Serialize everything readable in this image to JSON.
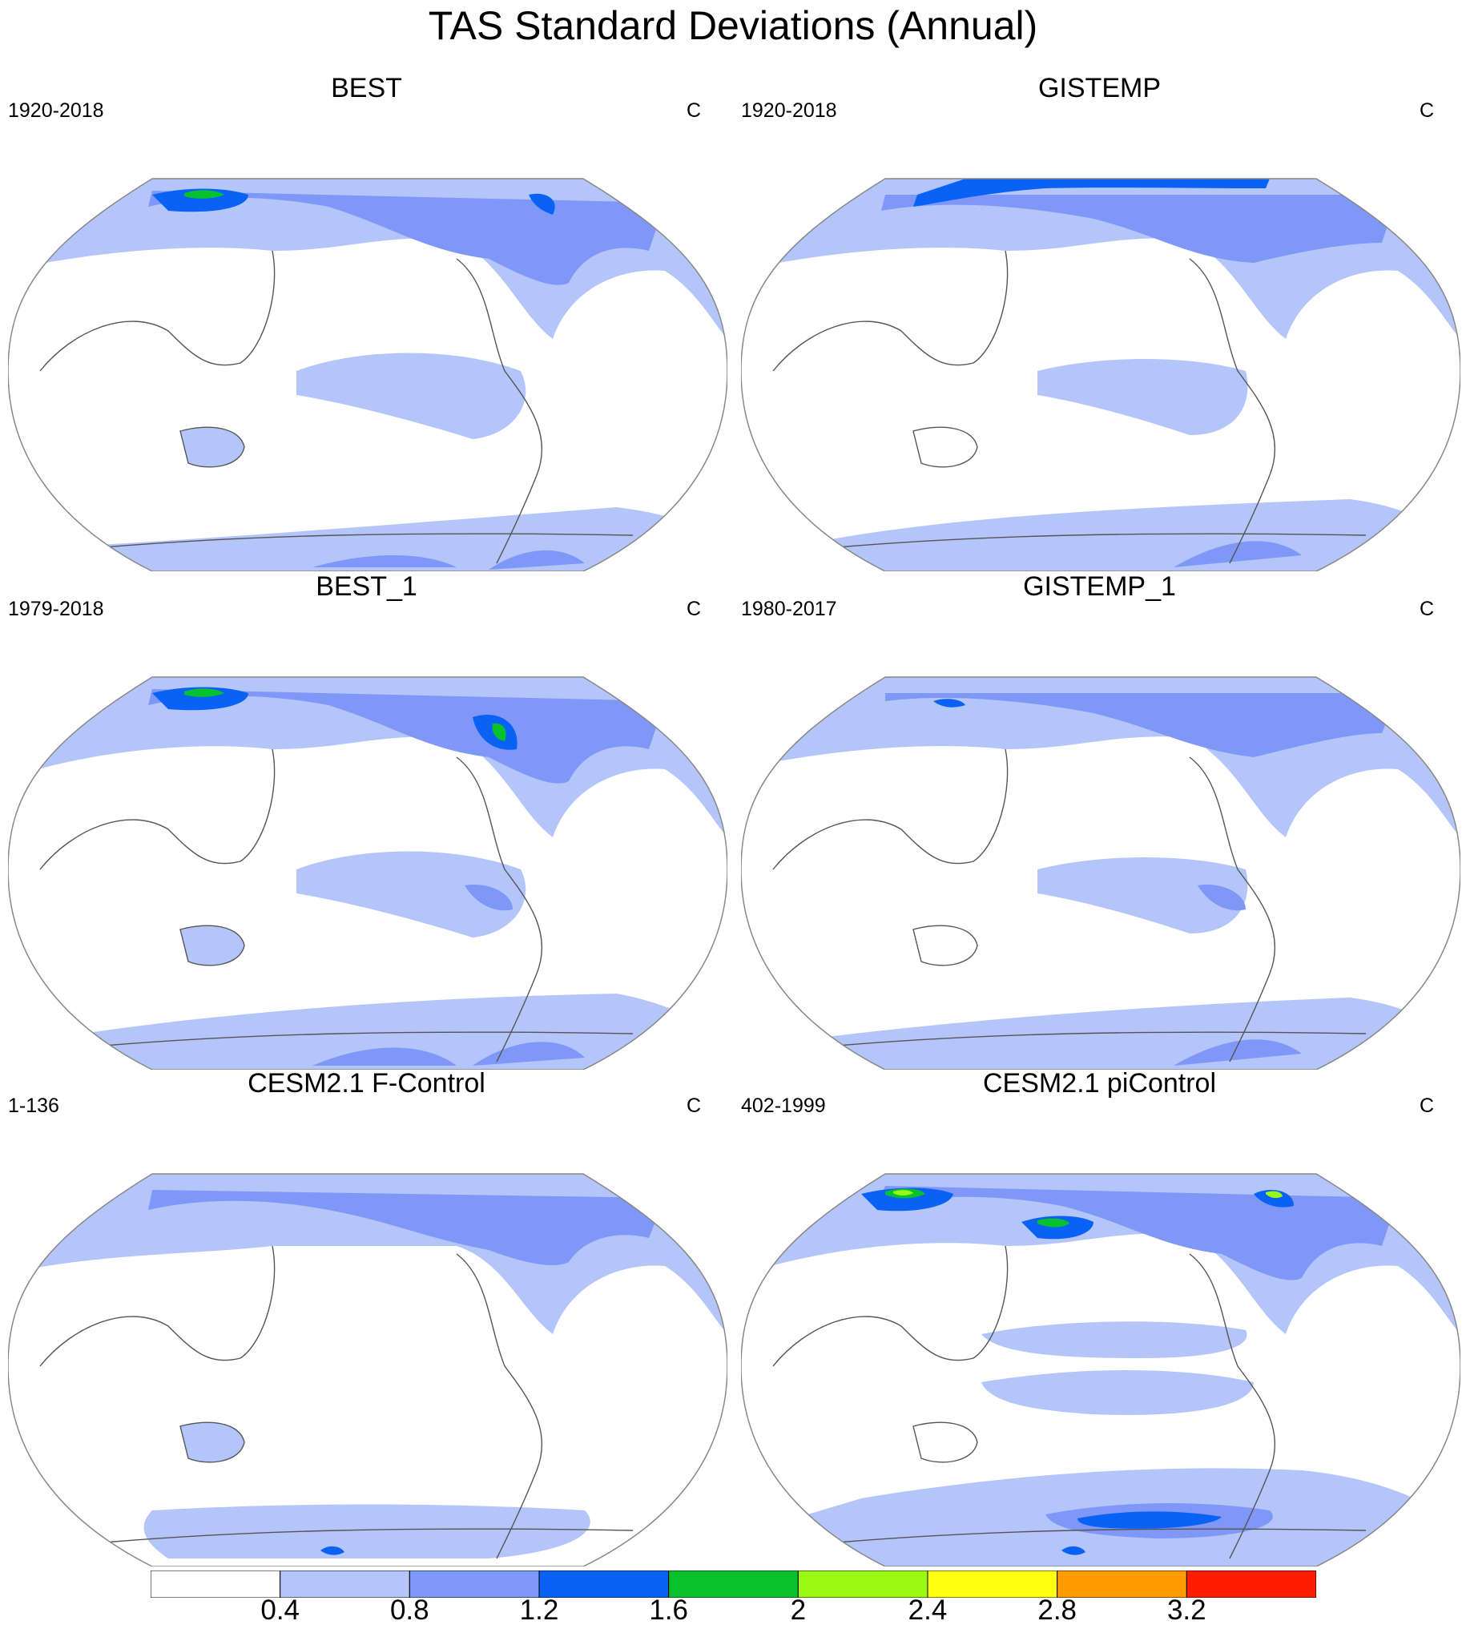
{
  "title": "TAS Standard Deviations (Annual)",
  "colors": {
    "level_0": "#ffffff",
    "level_1": "#b4c5fa",
    "level_2": "#7f97f6",
    "level_3": "#0a62f5",
    "level_4": "#08c22d",
    "level_5": "#9bf812",
    "level_6": "#ffff10",
    "level_7": "#ff9b00",
    "level_8": "#ff1e00",
    "coastline": "#555555",
    "map_border": "#888888"
  },
  "panels": [
    {
      "title": "BEST",
      "period": "1920-2018",
      "units": "C"
    },
    {
      "title": "GISTEMP",
      "period": "1920-2018",
      "units": "C"
    },
    {
      "title": "BEST_1",
      "period": "1979-2018",
      "units": "C"
    },
    {
      "title": "GISTEMP_1",
      "period": "1980-2017",
      "units": "C"
    },
    {
      "title": "CESM2.1 F-Control",
      "period": "1-136",
      "units": "C"
    },
    {
      "title": "CESM2.1 piControl",
      "period": "402-1999",
      "units": "C"
    }
  ],
  "colorbar": {
    "labels": [
      "0.4",
      "0.8",
      "1.2",
      "1.6",
      "2",
      "2.4",
      "2.8",
      "3.2"
    ],
    "bins": [
      "level_0",
      "level_1",
      "level_2",
      "level_3",
      "level_4",
      "level_5",
      "level_6",
      "level_7",
      "level_8"
    ]
  }
}
